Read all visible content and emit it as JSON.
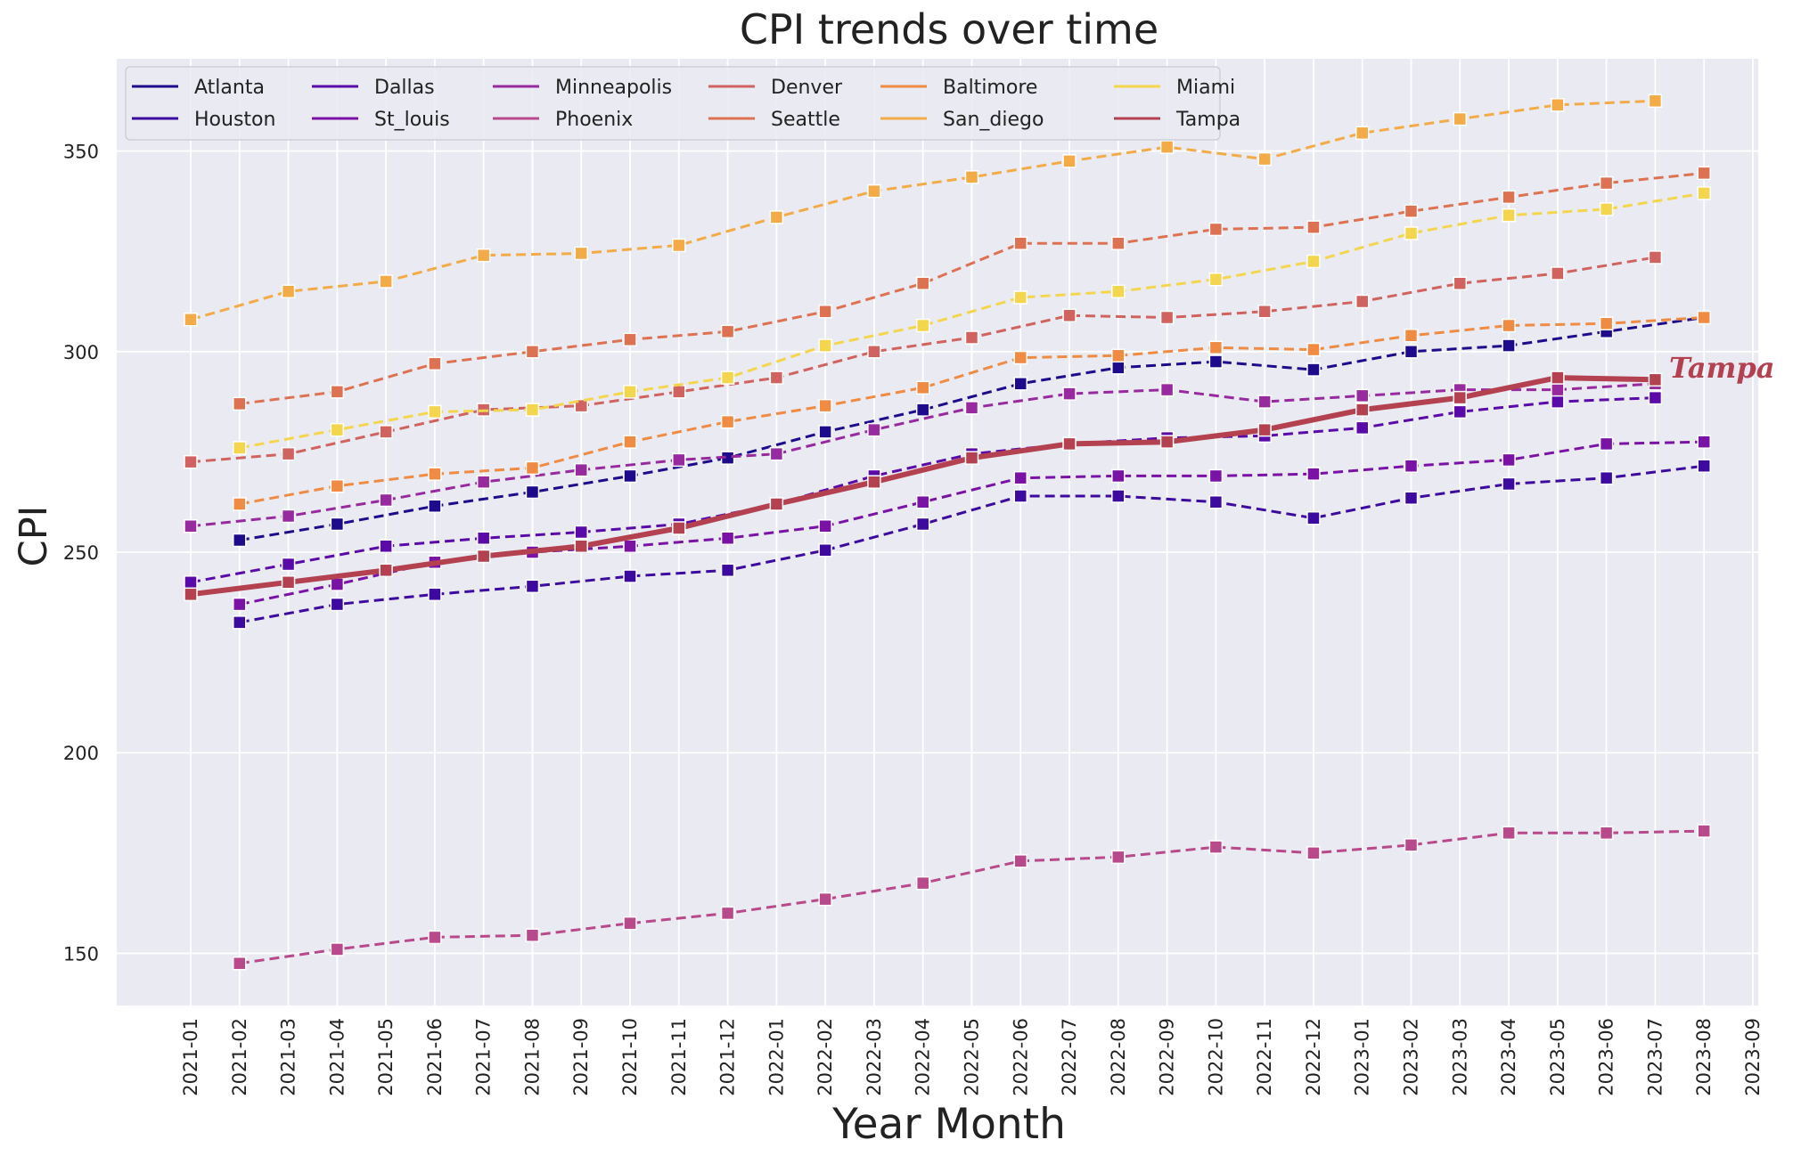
{
  "chart_data": {
    "type": "line",
    "title": "CPI trends over time",
    "xlabel": "Year Month",
    "ylabel": "CPI",
    "ylim": [
      137,
      373
    ],
    "yticks": [
      150,
      200,
      250,
      300,
      350
    ],
    "categories": [
      "2021-01",
      "2021-02",
      "2021-03",
      "2021-04",
      "2021-05",
      "2021-06",
      "2021-07",
      "2021-08",
      "2021-09",
      "2021-10",
      "2021-11",
      "2021-12",
      "2022-01",
      "2022-02",
      "2022-03",
      "2022-04",
      "2022-05",
      "2022-06",
      "2022-07",
      "2022-08",
      "2022-09",
      "2022-10",
      "2022-11",
      "2022-12",
      "2023-01",
      "2023-02",
      "2023-03",
      "2023-04",
      "2023-05",
      "2023-06",
      "2023-07",
      "2023-08",
      "2023-09"
    ],
    "grid": true,
    "legend_position": "top-left",
    "highlight_series": "Tampa",
    "highlight_label": "Tampa",
    "series": [
      {
        "name": "Atlanta",
        "color": "#1e0b8c",
        "points": [
          [
            1,
            253
          ],
          [
            3,
            257
          ],
          [
            5,
            261.5
          ],
          [
            7,
            265
          ],
          [
            9,
            269
          ],
          [
            11,
            273.5
          ],
          [
            13,
            280
          ],
          [
            15,
            285.5
          ],
          [
            17,
            292
          ],
          [
            19,
            296
          ],
          [
            21,
            297.5
          ],
          [
            23,
            295.5
          ],
          [
            25,
            300
          ],
          [
            27,
            301.5
          ],
          [
            29,
            305
          ],
          [
            31,
            308.5
          ]
        ]
      },
      {
        "name": "Houston",
        "color": "#3c0a9e",
        "points": [
          [
            1,
            232.5
          ],
          [
            3,
            237
          ],
          [
            5,
            239.5
          ],
          [
            7,
            241.5
          ],
          [
            9,
            244
          ],
          [
            11,
            245.5
          ],
          [
            13,
            250.5
          ],
          [
            15,
            257
          ],
          [
            17,
            264
          ],
          [
            19,
            264
          ],
          [
            21,
            262.5
          ],
          [
            23,
            258.5
          ],
          [
            25,
            263.5
          ],
          [
            27,
            267
          ],
          [
            29,
            268.5
          ],
          [
            31,
            271.5
          ]
        ]
      },
      {
        "name": "Dallas",
        "color": "#5a0aa8",
        "points": [
          [
            0,
            242.5
          ],
          [
            2,
            247
          ],
          [
            4,
            251.5
          ],
          [
            6,
            253.5
          ],
          [
            8,
            255
          ],
          [
            10,
            257
          ],
          [
            12,
            262
          ],
          [
            14,
            269
          ],
          [
            16,
            274.5
          ],
          [
            18,
            277
          ],
          [
            20,
            278.5
          ],
          [
            22,
            279
          ],
          [
            24,
            281
          ],
          [
            26,
            285
          ],
          [
            28,
            287.5
          ],
          [
            30,
            288.5
          ]
        ]
      },
      {
        "name": "St_louis",
        "color": "#7a12a6",
        "points": [
          [
            1,
            237
          ],
          [
            3,
            242
          ],
          [
            5,
            247.5
          ],
          [
            7,
            250
          ],
          [
            9,
            251.5
          ],
          [
            11,
            253.5
          ],
          [
            13,
            256.5
          ],
          [
            15,
            262.5
          ],
          [
            17,
            268.5
          ],
          [
            19,
            269
          ],
          [
            21,
            269
          ],
          [
            23,
            269.5
          ],
          [
            25,
            271.5
          ],
          [
            27,
            273
          ],
          [
            29,
            277
          ],
          [
            31,
            277.5
          ]
        ]
      },
      {
        "name": "Minneapolis",
        "color": "#972a9e",
        "points": [
          [
            0,
            256.5
          ],
          [
            2,
            259
          ],
          [
            4,
            263
          ],
          [
            6,
            267.5
          ],
          [
            8,
            270.5
          ],
          [
            10,
            273
          ],
          [
            12,
            274.5
          ],
          [
            14,
            280.5
          ],
          [
            16,
            286
          ],
          [
            18,
            289.5
          ],
          [
            20,
            290.5
          ],
          [
            22,
            287.5
          ],
          [
            24,
            289
          ],
          [
            26,
            290.5
          ],
          [
            28,
            290.5
          ],
          [
            30,
            292
          ]
        ]
      },
      {
        "name": "Phoenix",
        "color": "#b8498a",
        "points": [
          [
            1,
            147.5
          ],
          [
            3,
            151
          ],
          [
            5,
            154
          ],
          [
            7,
            154.5
          ],
          [
            9,
            157.5
          ],
          [
            11,
            160
          ],
          [
            13,
            163.5
          ],
          [
            15,
            167.5
          ],
          [
            17,
            173
          ],
          [
            19,
            174
          ],
          [
            21,
            176.5
          ],
          [
            23,
            175
          ],
          [
            25,
            177
          ],
          [
            27,
            180
          ],
          [
            29,
            180
          ],
          [
            31,
            180.5
          ]
        ]
      },
      {
        "name": "Denver",
        "color": "#d0635f",
        "points": [
          [
            0,
            272.5
          ],
          [
            2,
            274.5
          ],
          [
            4,
            280
          ],
          [
            6,
            285.5
          ],
          [
            8,
            286.5
          ],
          [
            10,
            290
          ],
          [
            12,
            293.5
          ],
          [
            14,
            300
          ],
          [
            16,
            303.5
          ],
          [
            18,
            309
          ],
          [
            20,
            308.5
          ],
          [
            22,
            310
          ],
          [
            24,
            312.5
          ],
          [
            26,
            317
          ],
          [
            28,
            319.5
          ],
          [
            30,
            323.5
          ]
        ]
      },
      {
        "name": "Seattle",
        "color": "#dd7253",
        "points": [
          [
            1,
            287
          ],
          [
            3,
            290
          ],
          [
            5,
            297
          ],
          [
            7,
            300
          ],
          [
            9,
            303
          ],
          [
            11,
            305
          ],
          [
            13,
            310
          ],
          [
            15,
            317
          ],
          [
            17,
            327
          ],
          [
            19,
            327
          ],
          [
            21,
            330.5
          ],
          [
            23,
            331
          ],
          [
            25,
            335
          ],
          [
            27,
            338.5
          ],
          [
            29,
            342
          ],
          [
            31,
            344.5
          ]
        ]
      },
      {
        "name": "Baltimore",
        "color": "#ef8b43",
        "points": [
          [
            1,
            262
          ],
          [
            3,
            266.5
          ],
          [
            5,
            269.5
          ],
          [
            7,
            271
          ],
          [
            9,
            277.5
          ],
          [
            11,
            282.5
          ],
          [
            13,
            286.5
          ],
          [
            15,
            291
          ],
          [
            17,
            298.5
          ],
          [
            19,
            299
          ],
          [
            21,
            301
          ],
          [
            23,
            300.5
          ],
          [
            25,
            304
          ],
          [
            27,
            306.5
          ],
          [
            29,
            307
          ],
          [
            31,
            308.5
          ]
        ]
      },
      {
        "name": "San_diego",
        "color": "#f3ab48",
        "points": [
          [
            0,
            308
          ],
          [
            2,
            315
          ],
          [
            4,
            317.5
          ],
          [
            6,
            324
          ],
          [
            8,
            324.5
          ],
          [
            10,
            326.5
          ],
          [
            12,
            333.5
          ],
          [
            14,
            340
          ],
          [
            16,
            343.5
          ],
          [
            18,
            347.5
          ],
          [
            20,
            351
          ],
          [
            22,
            348
          ],
          [
            24,
            354.5
          ],
          [
            26,
            358
          ],
          [
            28,
            361.5
          ],
          [
            30,
            362.5
          ]
        ]
      },
      {
        "name": "Miami",
        "color": "#f4d64e",
        "points": [
          [
            1,
            276
          ],
          [
            3,
            280.5
          ],
          [
            5,
            285
          ],
          [
            7,
            285.5
          ],
          [
            9,
            290
          ],
          [
            11,
            293.5
          ],
          [
            13,
            301.5
          ],
          [
            15,
            306.5
          ],
          [
            17,
            313.5
          ],
          [
            19,
            315
          ],
          [
            21,
            318
          ],
          [
            23,
            322.5
          ],
          [
            25,
            329.5
          ],
          [
            27,
            334
          ],
          [
            29,
            335.5
          ],
          [
            31,
            339.5
          ]
        ]
      },
      {
        "name": "Tampa",
        "color": "#b3414f",
        "points": [
          [
            0,
            239.5
          ],
          [
            2,
            242.5
          ],
          [
            4,
            245.5
          ],
          [
            6,
            249
          ],
          [
            8,
            251.5
          ],
          [
            10,
            256
          ],
          [
            12,
            262
          ],
          [
            14,
            267.5
          ],
          [
            16,
            273.5
          ],
          [
            18,
            277
          ],
          [
            20,
            277.5
          ],
          [
            22,
            280.5
          ],
          [
            24,
            285.5
          ],
          [
            26,
            288.5
          ],
          [
            28,
            293.5
          ],
          [
            30,
            293
          ]
        ]
      }
    ]
  }
}
